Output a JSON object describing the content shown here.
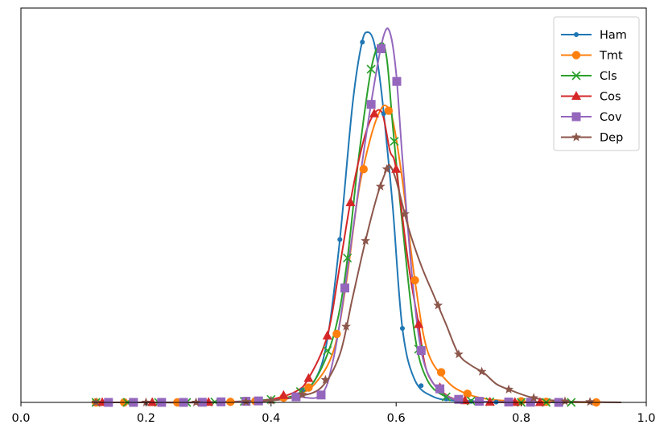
{
  "chart_data": {
    "type": "line",
    "title": "",
    "xlabel": "",
    "ylabel": "",
    "xlim": [
      0.0,
      1.0
    ],
    "ylim": [
      0,
      1.0
    ],
    "y_ticks_shown": false,
    "grid": false,
    "legend_position": "top-right",
    "x_ticks": [
      "0.0",
      "0.2",
      "0.4",
      "0.6",
      "0.8",
      "1.0"
    ],
    "series": [
      {
        "name": "Ham",
        "color": "#1f77b4",
        "marker": "dot",
        "x": [
          0.12,
          0.2,
          0.28,
          0.36,
          0.4,
          0.44,
          0.47,
          0.49,
          0.51,
          0.53,
          0.545,
          0.555,
          0.565,
          0.575,
          0.585,
          0.595,
          0.61,
          0.63,
          0.66,
          0.7,
          0.75,
          0.8,
          0.85
        ],
        "y": [
          0.0,
          0.0,
          0.0,
          0.003,
          0.008,
          0.02,
          0.06,
          0.17,
          0.44,
          0.8,
          0.97,
          1.0,
          0.97,
          0.86,
          0.7,
          0.52,
          0.2,
          0.06,
          0.015,
          0.004,
          0.001,
          0.0,
          0.0
        ],
        "marker_x": [
          0.12,
          0.21,
          0.3,
          0.4,
          0.45,
          0.51,
          0.546,
          0.58,
          0.61,
          0.64,
          0.68,
          0.72,
          0.76
        ]
      },
      {
        "name": "Tmt",
        "color": "#ff7f0e",
        "marker": "circle",
        "x": [
          0.12,
          0.2,
          0.28,
          0.36,
          0.4,
          0.44,
          0.47,
          0.5,
          0.52,
          0.54,
          0.56,
          0.575,
          0.585,
          0.595,
          0.61,
          0.63,
          0.65,
          0.68,
          0.71,
          0.75,
          0.8,
          0.85,
          0.92
        ],
        "y": [
          0.0,
          0.0,
          0.0,
          0.002,
          0.006,
          0.02,
          0.05,
          0.14,
          0.32,
          0.57,
          0.72,
          0.79,
          0.8,
          0.76,
          0.6,
          0.33,
          0.14,
          0.06,
          0.025,
          0.008,
          0.003,
          0.001,
          0.0
        ],
        "marker_x": [
          0.12,
          0.165,
          0.25,
          0.335,
          0.375,
          0.42,
          0.46,
          0.505,
          0.548,
          0.588,
          0.63,
          0.672,
          0.714,
          0.8,
          0.84,
          0.92
        ]
      },
      {
        "name": "Cls",
        "color": "#2ca02c",
        "marker": "x",
        "x": [
          0.12,
          0.2,
          0.28,
          0.36,
          0.4,
          0.44,
          0.47,
          0.5,
          0.52,
          0.54,
          0.56,
          0.575,
          0.585,
          0.595,
          0.61,
          0.63,
          0.65,
          0.68,
          0.72,
          0.76,
          0.8,
          0.86
        ],
        "y": [
          0.0,
          0.0,
          0.0,
          0.003,
          0.008,
          0.02,
          0.06,
          0.18,
          0.36,
          0.66,
          0.9,
          0.97,
          0.93,
          0.74,
          0.48,
          0.18,
          0.06,
          0.015,
          0.004,
          0.001,
          0.0,
          0.0
        ],
        "marker_x": [
          0.12,
          0.17,
          0.22,
          0.265,
          0.31,
          0.357,
          0.4,
          0.447,
          0.49,
          0.522,
          0.56,
          0.597,
          0.636,
          0.68,
          0.72,
          0.75,
          0.8,
          0.84,
          0.88
        ]
      },
      {
        "name": "Cos",
        "color": "#d62728",
        "marker": "triangle",
        "x": [
          0.12,
          0.2,
          0.28,
          0.36,
          0.4,
          0.44,
          0.46,
          0.49,
          0.51,
          0.53,
          0.55,
          0.565,
          0.578,
          0.59,
          0.6,
          0.62,
          0.635,
          0.65,
          0.68,
          0.71,
          0.75,
          0.8,
          0.85
        ],
        "y": [
          0.0,
          0.0,
          0.0,
          0.002,
          0.008,
          0.03,
          0.065,
          0.18,
          0.37,
          0.57,
          0.72,
          0.78,
          0.78,
          0.68,
          0.63,
          0.37,
          0.22,
          0.08,
          0.02,
          0.005,
          0.001,
          0.0,
          0.0
        ],
        "marker_x": [
          0.13,
          0.21,
          0.3,
          0.42,
          0.46,
          0.49,
          0.527,
          0.565,
          0.6,
          0.636,
          0.67,
          0.71,
          0.75,
          0.79,
          0.83
        ]
      },
      {
        "name": "Cov",
        "color": "#9467bd",
        "marker": "square",
        "x": [
          0.12,
          0.2,
          0.28,
          0.36,
          0.4,
          0.44,
          0.48,
          0.5,
          0.52,
          0.545,
          0.565,
          0.58,
          0.59,
          0.6,
          0.61,
          0.625,
          0.64,
          0.66,
          0.69,
          0.73,
          0.78,
          0.85
        ],
        "y": [
          0.0,
          0.0,
          0.0,
          0.003,
          0.005,
          0.015,
          0.02,
          0.12,
          0.33,
          0.64,
          0.86,
          0.99,
          1.0,
          0.89,
          0.66,
          0.35,
          0.14,
          0.05,
          0.01,
          0.003,
          0.001,
          0.0
        ],
        "marker_x": [
          0.14,
          0.18,
          0.225,
          0.26,
          0.29,
          0.32,
          0.36,
          0.38,
          0.44,
          0.48,
          0.518,
          0.56,
          0.576,
          0.601,
          0.64,
          0.67,
          0.7,
          0.733,
          0.78,
          0.815,
          0.86
        ]
      },
      {
        "name": "Dep",
        "color": "#8c564b",
        "marker": "star",
        "x": [
          0.12,
          0.2,
          0.28,
          0.36,
          0.4,
          0.44,
          0.48,
          0.51,
          0.53,
          0.55,
          0.57,
          0.585,
          0.59,
          0.6,
          0.62,
          0.64,
          0.66,
          0.68,
          0.7,
          0.72,
          0.74,
          0.76,
          0.78,
          0.82,
          0.87,
          0.92,
          0.96
        ],
        "y": [
          0.0,
          0.0,
          0.0,
          0.002,
          0.005,
          0.015,
          0.04,
          0.13,
          0.28,
          0.43,
          0.56,
          0.63,
          0.64,
          0.6,
          0.47,
          0.37,
          0.29,
          0.21,
          0.13,
          0.1,
          0.08,
          0.05,
          0.035,
          0.012,
          0.003,
          0.001,
          0.0
        ],
        "marker_x": [
          0.12,
          0.2,
          0.28,
          0.36,
          0.4,
          0.45,
          0.487,
          0.52,
          0.551,
          0.575,
          0.585,
          0.614,
          0.667,
          0.7,
          0.737,
          0.78,
          0.82,
          0.87,
          0.91
        ]
      }
    ]
  }
}
